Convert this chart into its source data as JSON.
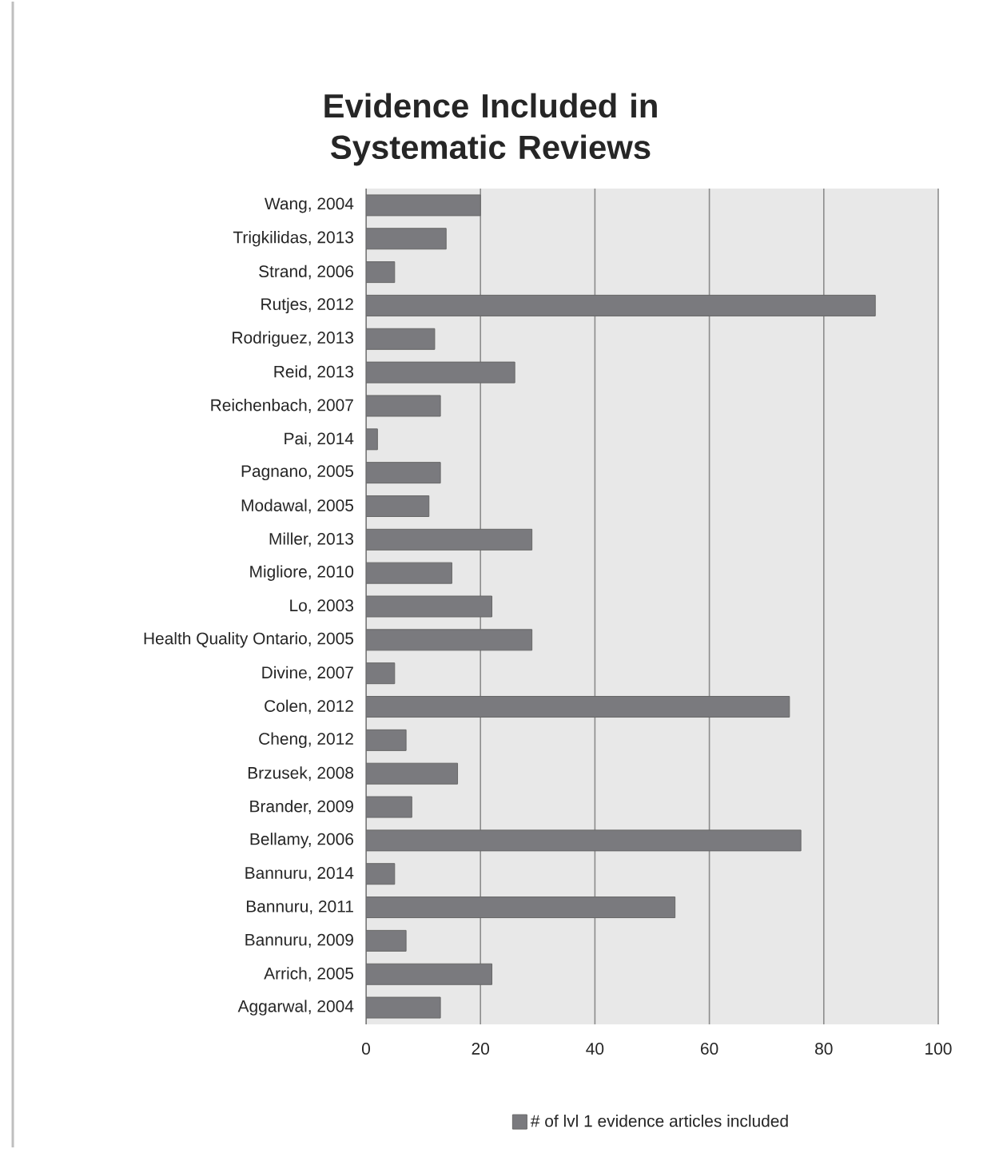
{
  "chart_data": {
    "type": "bar",
    "orientation": "horizontal",
    "title": "Evidence Included in Systematic Reviews",
    "categories": [
      "Wang, 2004",
      "Trigkilidas, 2013",
      "Strand, 2006",
      "Rutjes, 2012",
      "Rodriguez, 2013",
      "Reid, 2013",
      "Reichenbach, 2007",
      "Pai, 2014",
      "Pagnano, 2005",
      "Modawal, 2005",
      "Miller, 2013",
      "Migliore, 2010",
      "Lo, 2003",
      "Health Quality Ontario, 2005",
      "Divine, 2007",
      "Colen, 2012",
      "Cheng, 2012",
      "Brzusek, 2008",
      "Brander, 2009",
      "Bellamy, 2006",
      "Bannuru, 2014",
      "Bannuru, 2011",
      "Bannuru, 2009",
      "Arrich, 2005",
      "Aggarwal, 2004"
    ],
    "series": [
      {
        "name": "# of lvl 1 evidence articles included",
        "color": "#7a7a7e",
        "values": [
          20,
          14,
          5,
          89,
          12,
          26,
          13,
          2,
          13,
          11,
          29,
          15,
          22,
          29,
          5,
          74,
          7,
          16,
          8,
          76,
          5,
          54,
          7,
          22,
          13
        ]
      }
    ],
    "xlim": [
      0,
      100
    ],
    "xticks": [
      0,
      20,
      40,
      60,
      80,
      100
    ],
    "grid": "x",
    "legend": "bottom"
  }
}
